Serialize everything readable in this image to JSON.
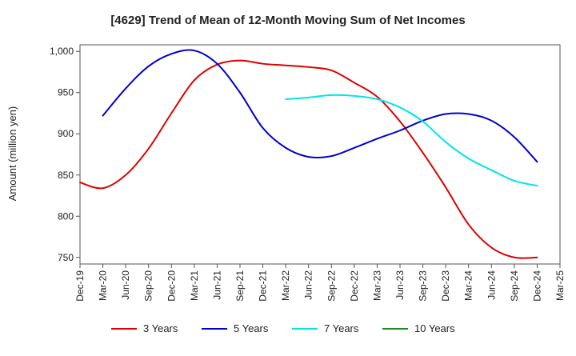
{
  "chart_data": {
    "type": "line",
    "title": "[4629]  Trend of Mean of 12-Month Moving Sum of Net Incomes",
    "xlabel": "",
    "ylabel": "Amount (million yen)",
    "ylim": [
      742,
      1008
    ],
    "yticks": [
      750,
      800,
      850,
      900,
      950,
      1000
    ],
    "ytick_labels": [
      "750",
      "800",
      "850",
      "900",
      "950",
      "1,000"
    ],
    "x_categories": [
      "Dec-19",
      "Mar-20",
      "Jun-20",
      "Sep-20",
      "Dec-20",
      "Mar-21",
      "Jun-21",
      "Sep-21",
      "Dec-21",
      "Mar-22",
      "Jun-22",
      "Sep-22",
      "Dec-22",
      "Mar-23",
      "Jun-23",
      "Sep-23",
      "Dec-23",
      "Mar-24",
      "Jun-24",
      "Sep-24",
      "Dec-24",
      "Mar-25"
    ],
    "grid": true,
    "legend_position": "bottom",
    "series": [
      {
        "name": "3 Years",
        "color": "#dd0000",
        "points": [
          {
            "x": "Dec-19",
            "y": 841
          },
          {
            "x": "Mar-20",
            "y": 834
          },
          {
            "x": "Jun-20",
            "y": 850
          },
          {
            "x": "Sep-20",
            "y": 882
          },
          {
            "x": "Dec-20",
            "y": 925
          },
          {
            "x": "Mar-21",
            "y": 965
          },
          {
            "x": "Jun-21",
            "y": 984
          },
          {
            "x": "Sep-21",
            "y": 989
          },
          {
            "x": "Dec-21",
            "y": 985
          },
          {
            "x": "Mar-22",
            "y": 983
          },
          {
            "x": "Jun-22",
            "y": 981
          },
          {
            "x": "Sep-22",
            "y": 977
          },
          {
            "x": "Dec-22",
            "y": 962
          },
          {
            "x": "Mar-23",
            "y": 945
          },
          {
            "x": "Jun-23",
            "y": 915
          },
          {
            "x": "Sep-23",
            "y": 877
          },
          {
            "x": "Dec-23",
            "y": 835
          },
          {
            "x": "Mar-24",
            "y": 790
          },
          {
            "x": "Jun-24",
            "y": 762
          },
          {
            "x": "Sep-24",
            "y": 750
          },
          {
            "x": "Dec-24",
            "y": 750
          }
        ]
      },
      {
        "name": "5 Years",
        "color": "#0000cc",
        "points": [
          {
            "x": "Mar-20",
            "y": 922
          },
          {
            "x": "Jun-20",
            "y": 955
          },
          {
            "x": "Sep-20",
            "y": 982
          },
          {
            "x": "Dec-20",
            "y": 997
          },
          {
            "x": "Mar-21",
            "y": 1001
          },
          {
            "x": "Jun-21",
            "y": 985
          },
          {
            "x": "Sep-21",
            "y": 950
          },
          {
            "x": "Dec-21",
            "y": 907
          },
          {
            "x": "Mar-22",
            "y": 883
          },
          {
            "x": "Jun-22",
            "y": 872
          },
          {
            "x": "Sep-22",
            "y": 873
          },
          {
            "x": "Dec-22",
            "y": 883
          },
          {
            "x": "Mar-23",
            "y": 894
          },
          {
            "x": "Jun-23",
            "y": 904
          },
          {
            "x": "Sep-23",
            "y": 916
          },
          {
            "x": "Dec-23",
            "y": 924
          },
          {
            "x": "Mar-24",
            "y": 924
          },
          {
            "x": "Jun-24",
            "y": 916
          },
          {
            "x": "Sep-24",
            "y": 896
          },
          {
            "x": "Dec-24",
            "y": 866
          }
        ]
      },
      {
        "name": "7 Years",
        "color": "#00e5e5",
        "points": [
          {
            "x": "Mar-22",
            "y": 942
          },
          {
            "x": "Jun-22",
            "y": 944
          },
          {
            "x": "Sep-22",
            "y": 947
          },
          {
            "x": "Dec-22",
            "y": 946
          },
          {
            "x": "Mar-23",
            "y": 942
          },
          {
            "x": "Jun-23",
            "y": 932
          },
          {
            "x": "Sep-23",
            "y": 915
          },
          {
            "x": "Dec-23",
            "y": 890
          },
          {
            "x": "Mar-24",
            "y": 870
          },
          {
            "x": "Jun-24",
            "y": 856
          },
          {
            "x": "Sep-24",
            "y": 843
          },
          {
            "x": "Dec-24",
            "y": 837
          }
        ]
      },
      {
        "name": "10 Years",
        "color": "#228b22",
        "points": []
      }
    ]
  }
}
